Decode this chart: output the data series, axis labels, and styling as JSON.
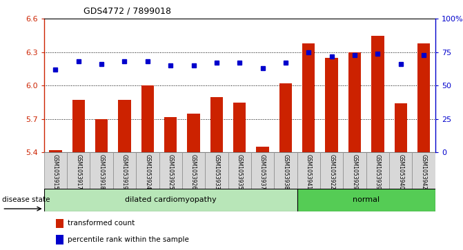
{
  "title": "GDS4772 / 7899018",
  "samples": [
    "GSM1053915",
    "GSM1053917",
    "GSM1053918",
    "GSM1053919",
    "GSM1053924",
    "GSM1053925",
    "GSM1053926",
    "GSM1053933",
    "GSM1053935",
    "GSM1053937",
    "GSM1053938",
    "GSM1053941",
    "GSM1053922",
    "GSM1053929",
    "GSM1053939",
    "GSM1053940",
    "GSM1053942"
  ],
  "bar_values": [
    5.42,
    5.87,
    5.7,
    5.87,
    6.0,
    5.72,
    5.75,
    5.9,
    5.85,
    5.45,
    6.02,
    6.38,
    6.25,
    6.3,
    6.45,
    5.84,
    6.38
  ],
  "dot_values": [
    62,
    68,
    66,
    68,
    68,
    65,
    65,
    67,
    67,
    63,
    67,
    75,
    72,
    73,
    74,
    66,
    73
  ],
  "bar_bottom": 5.4,
  "ylim_left": [
    5.4,
    6.6
  ],
  "ylim_right": [
    0,
    100
  ],
  "yticks_left": [
    5.4,
    5.7,
    6.0,
    6.3,
    6.6
  ],
  "yticks_right": [
    0,
    25,
    50,
    75,
    100
  ],
  "ytick_right_labels": [
    "0",
    "25",
    "50",
    "75",
    "100%"
  ],
  "bar_color": "#cc2200",
  "dot_color": "#0000cc",
  "groups": [
    {
      "label": "dilated cardiomyopathy",
      "start": 0,
      "end": 11,
      "color": "#b8e6b8"
    },
    {
      "label": "normal",
      "start": 11,
      "end": 17,
      "color": "#55cc55"
    }
  ],
  "disease_state_label": "disease state",
  "legend_bar_label": "transformed count",
  "legend_dot_label": "percentile rank within the sample",
  "tick_label_bg": "#d8d8d8",
  "axis_color_left": "#cc2200",
  "axis_color_right": "#0000cc",
  "bar_width": 0.55
}
